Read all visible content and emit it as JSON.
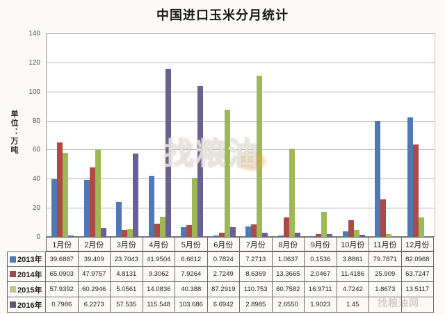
{
  "chart_data": {
    "type": "bar",
    "title": "中国进口玉米分月统计",
    "ylabel": "单位：万吨",
    "xlabel": "",
    "unit": "万吨",
    "categories": [
      "1月份",
      "2月份",
      "3月份",
      "4月份",
      "5月份",
      "6月份",
      "7月份",
      "8月份",
      "9月份",
      "10月份",
      "11月份",
      "12月份"
    ],
    "series": [
      {
        "name": "2013年",
        "color": "#4f7ab1",
        "values": [
          "39.6887",
          "39.409",
          "23.7043",
          "41.9504",
          "6.6612",
          "0.7824",
          "7.2713",
          "1.0637",
          "0.1536",
          "3.8861",
          "79.7871",
          "82.0968"
        ]
      },
      {
        "name": "2014年",
        "color": "#ae4a45",
        "values": [
          "65.0903",
          "47.9757",
          "4.8131",
          "9.3062",
          "7.9264",
          "2.7249",
          "8.6369",
          "13.3665",
          "2.0467",
          "11.4186",
          "25.909",
          "63.7247"
        ]
      },
      {
        "name": "2015年",
        "color": "#9cb954",
        "values": [
          "57.9392",
          "60.2946",
          "5.0561",
          "14.0836",
          "40.388",
          "87.2919",
          "110.753",
          "60.7582",
          "16.9711",
          "4.7242",
          "1.8673",
          "13.5117"
        ]
      },
      {
        "name": "2016年",
        "color": "#6b6096",
        "values": [
          "0.7986",
          "6.2273",
          "57.535",
          "115.548",
          "103.686",
          "6.6942",
          "2.8985",
          "2.6550",
          "1.9023",
          "1.45",
          "",
          ""
        ]
      }
    ],
    "swatch_colors": [
      "#4f7ab1",
      "#9a4a50",
      "#bcc68c",
      "#5d5870"
    ],
    "ylim": [
      0,
      140
    ],
    "yticks": [
      0,
      20,
      40,
      60,
      80,
      100,
      120,
      140
    ],
    "grid": true,
    "legend_position": "data-table-left"
  },
  "watermark": {
    "center_text": "找粮油",
    "corner_text": "找粮油网"
  }
}
